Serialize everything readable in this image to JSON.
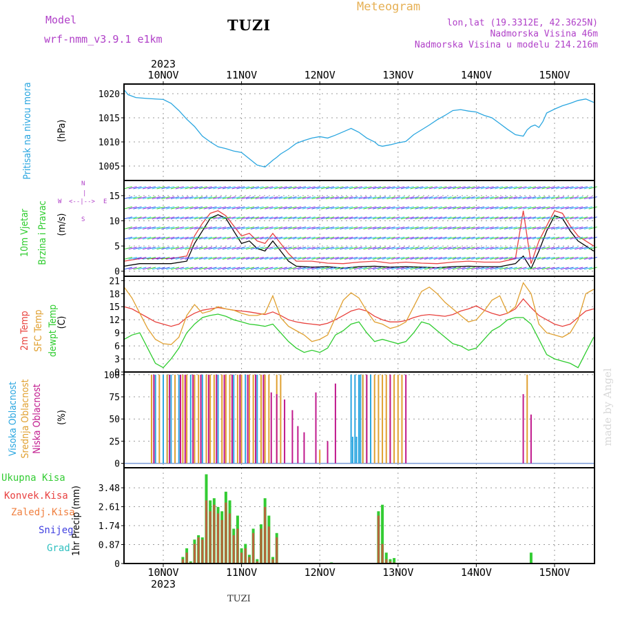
{
  "header": {
    "model_label": "Model",
    "model_name": "wrf-nmm_v3.9.1  e1km",
    "station": "TUZI",
    "product": "Meteogram",
    "lonlat": "lon,lat (19.3312E, 42.3625N)",
    "elevation": "Nadmorska Visina 46m",
    "model_elevation": "Nadmorska Visina u modelu 214.216m"
  },
  "footer": {
    "station": "TUZI",
    "credit": "made by Angel"
  },
  "colors": {
    "pressure": "#2aa6e0",
    "temp2m": "#e8413c",
    "sfc_temp": "#e0a030",
    "dewpoint": "#2ecc2e",
    "wind_speed": "#000000",
    "wind_gust": "#e84040",
    "cloud_high": "#2aa6e0",
    "cloud_mid": "#e0a030",
    "cloud_low": "#c0188c",
    "precip_total": "#33cc33",
    "precip_conv": "#e84040",
    "precip_frz": "#f08040",
    "snow": "#4040e0",
    "hail": "#30c0c0",
    "grid": "#999999",
    "labels": "#000000"
  },
  "time_axis": {
    "year": "2023",
    "days": [
      "10NOV",
      "11NOV",
      "12NOV",
      "13NOV",
      "14NOV",
      "15NOV"
    ]
  },
  "chart_data": [
    {
      "type": "line",
      "panel": "pressure",
      "ylabel_lines": [
        "Pritisak na nivou mora"
      ],
      "unit": "(hPa)",
      "ylim": [
        1002,
        1022
      ],
      "yticks": [
        "1005",
        "1010",
        "1015",
        "1020"
      ],
      "ytick_values": [
        1005,
        1010,
        1015,
        1020
      ],
      "xlim": [
        -0.5,
        5.5
      ],
      "x": [
        -0.5,
        -0.45,
        -0.35,
        -0.2,
        0,
        0.1,
        0.2,
        0.3,
        0.4,
        0.5,
        0.6,
        0.7,
        0.8,
        0.9,
        1.0,
        1.1,
        1.2,
        1.3,
        1.35,
        1.4,
        1.45,
        1.5,
        1.6,
        1.7,
        1.8,
        1.9,
        2.0,
        2.1,
        2.2,
        2.3,
        2.4,
        2.5,
        2.6,
        2.7,
        2.75,
        2.8,
        2.9,
        3.0,
        3.1,
        3.2,
        3.3,
        3.4,
        3.5,
        3.6,
        3.7,
        3.8,
        3.9,
        4.0,
        4.1,
        4.2,
        4.3,
        4.4,
        4.5,
        4.6,
        4.65,
        4.7,
        4.75,
        4.8,
        4.85,
        4.9,
        5.0,
        5.1,
        5.2,
        5.3,
        5.4,
        5.5
      ],
      "series": [
        {
          "values": [
            1020.8,
            1019.8,
            1019.2,
            1019.0,
            1018.8,
            1018.0,
            1016.5,
            1014.7,
            1013.2,
            1011.2,
            1010.0,
            1009.0,
            1008.6,
            1008.1,
            1007.8,
            1006.5,
            1005.2,
            1004.8,
            1005.5,
            1006.2,
            1006.8,
            1007.5,
            1008.5,
            1009.7,
            1010.3,
            1010.8,
            1011.1,
            1010.8,
            1011.4,
            1012.1,
            1012.8,
            1012.0,
            1010.8,
            1010.0,
            1009.3,
            1009.1,
            1009.4,
            1009.8,
            1010.1,
            1011.5,
            1012.5,
            1013.5,
            1014.6,
            1015.5,
            1016.5,
            1016.7,
            1016.4,
            1016.2,
            1015.5,
            1015.0,
            1013.8,
            1012.6,
            1011.5,
            1011.2,
            1012.5,
            1013.2,
            1013.5,
            1013.0,
            1014.2,
            1016.0,
            1016.8,
            1017.5,
            1018.0,
            1018.6,
            1018.9,
            1018.2
          ]
        }
      ]
    },
    {
      "type": "line",
      "panel": "wind",
      "ylabel_lines": [
        "10m Vjetar",
        "Brzina i Pravac"
      ],
      "unit": "(m/s)",
      "compass_labels": [
        "W",
        "<--|-->",
        "E",
        "N",
        "|",
        "S"
      ],
      "ylim": [
        -1,
        18
      ],
      "yticks": [
        "0",
        "5",
        "10",
        "15"
      ],
      "ytick_values": [
        0,
        5,
        10,
        15
      ],
      "xlim": [
        -0.5,
        5.5
      ],
      "x": [
        -0.5,
        -0.3,
        -0.1,
        0.1,
        0.3,
        0.4,
        0.5,
        0.6,
        0.7,
        0.8,
        0.9,
        1.0,
        1.1,
        1.2,
        1.3,
        1.4,
        1.5,
        1.6,
        1.7,
        1.9,
        2.1,
        2.3,
        2.5,
        2.7,
        2.9,
        3.1,
        3.3,
        3.5,
        3.7,
        3.9,
        4.1,
        4.3,
        4.5,
        4.6,
        4.7,
        4.8,
        4.9,
        5.0,
        5.1,
        5.2,
        5.3,
        5.4,
        5.5
      ],
      "series": [
        {
          "name": "speed",
          "values": [
            1.0,
            1.5,
            1.5,
            1.5,
            2.0,
            5.5,
            8.0,
            10.5,
            11.2,
            10.5,
            8.0,
            5.5,
            6.0,
            4.5,
            4.0,
            6.0,
            4.0,
            2.0,
            1.0,
            0.8,
            0.9,
            0.6,
            0.9,
            1.0,
            0.8,
            0.9,
            0.8,
            0.7,
            0.9,
            1.0,
            0.9,
            0.9,
            1.5,
            3.0,
            0.5,
            4.0,
            8.0,
            11.0,
            10.5,
            8.0,
            6.0,
            5.0,
            4.0
          ]
        },
        {
          "name": "gust",
          "values": [
            2.0,
            2.5,
            2.5,
            2.5,
            3.0,
            7.0,
            9.5,
            11.5,
            12.0,
            11.0,
            9.0,
            7.0,
            7.5,
            6.0,
            5.5,
            7.5,
            5.5,
            3.5,
            2.0,
            2.0,
            1.6,
            1.5,
            1.8,
            2.0,
            1.6,
            1.8,
            1.6,
            1.5,
            1.8,
            2.0,
            1.8,
            1.8,
            2.5,
            12.0,
            1.5,
            6.0,
            9.0,
            12.0,
            11.5,
            9.0,
            7.0,
            6.0,
            5.0
          ]
        }
      ]
    },
    {
      "type": "line",
      "panel": "temperature",
      "ylabel_lines": [
        "2m Temp",
        "SFC Temp",
        "dewpt Temp"
      ],
      "unit": "(C)",
      "ylim": [
        0,
        22
      ],
      "yticks": [
        "0",
        "3",
        "6",
        "9",
        "12",
        "15",
        "18",
        "21"
      ],
      "ytick_values": [
        0,
        3,
        6,
        9,
        12,
        15,
        18,
        21
      ],
      "xlim": [
        -0.5,
        5.5
      ],
      "x": [
        -0.5,
        -0.4,
        -0.3,
        -0.2,
        -0.1,
        0,
        0.1,
        0.2,
        0.3,
        0.4,
        0.5,
        0.6,
        0.7,
        0.8,
        0.9,
        1.0,
        1.1,
        1.2,
        1.3,
        1.4,
        1.5,
        1.6,
        1.7,
        1.8,
        1.9,
        2.0,
        2.1,
        2.2,
        2.3,
        2.4,
        2.5,
        2.6,
        2.7,
        2.8,
        2.9,
        3.0,
        3.1,
        3.2,
        3.3,
        3.4,
        3.5,
        3.6,
        3.7,
        3.8,
        3.9,
        4.0,
        4.1,
        4.2,
        4.3,
        4.4,
        4.5,
        4.6,
        4.7,
        4.8,
        4.9,
        5.0,
        5.1,
        5.2,
        5.3,
        5.4,
        5.5
      ],
      "series": [
        {
          "name": "2m",
          "values": [
            15.0,
            14.5,
            13.5,
            12.5,
            11.5,
            11.0,
            10.5,
            11.0,
            12.5,
            13.5,
            14.2,
            14.5,
            14.8,
            14.5,
            14.2,
            14.0,
            13.8,
            13.5,
            13.2,
            13.8,
            13.0,
            12.0,
            11.5,
            11.2,
            11.0,
            10.8,
            11.2,
            12.0,
            13.0,
            14.0,
            14.5,
            14.0,
            12.8,
            12.0,
            11.5,
            11.5,
            11.8,
            12.5,
            13.0,
            13.2,
            13.0,
            12.8,
            13.2,
            14.0,
            14.5,
            15.2,
            14.2,
            13.5,
            13.0,
            13.5,
            14.5,
            16.8,
            14.8,
            13.0,
            12.0,
            11.0,
            10.5,
            11.0,
            12.5,
            14.0,
            14.5
          ]
        },
        {
          "name": "sfc",
          "values": [
            19.5,
            17.0,
            13.5,
            10.0,
            7.5,
            6.5,
            6.3,
            8.0,
            13.0,
            15.5,
            13.5,
            14.0,
            15.0,
            14.5,
            14.2,
            13.5,
            13.0,
            13.0,
            13.5,
            17.5,
            12.5,
            10.5,
            9.5,
            8.5,
            7.0,
            7.5,
            8.5,
            12.5,
            16.5,
            18.2,
            17.0,
            14.0,
            11.5,
            11.0,
            10.0,
            10.5,
            11.5,
            15.0,
            18.5,
            19.5,
            18.0,
            16.0,
            14.5,
            13.0,
            11.5,
            12.0,
            14.0,
            16.5,
            17.5,
            13.5,
            15.0,
            20.5,
            18.0,
            11.0,
            9.0,
            8.5,
            8.0,
            9.0,
            12.0,
            18.0,
            19.0
          ]
        },
        {
          "name": "dewpt",
          "values": [
            7.5,
            8.5,
            9.0,
            5.5,
            2.0,
            1.0,
            3.0,
            5.5,
            9.0,
            11.0,
            12.5,
            13.0,
            13.3,
            12.8,
            12.0,
            11.5,
            11.0,
            10.8,
            10.5,
            11.0,
            9.0,
            7.0,
            5.5,
            4.5,
            5.0,
            4.5,
            5.5,
            8.5,
            9.5,
            11.0,
            11.5,
            9.0,
            7.0,
            7.5,
            7.0,
            6.5,
            7.0,
            9.0,
            11.5,
            11.0,
            9.5,
            8.0,
            6.5,
            6.0,
            5.0,
            5.5,
            7.5,
            9.5,
            10.5,
            12.0,
            12.5,
            12.5,
            11.0,
            7.5,
            4.0,
            3.0,
            2.5,
            2.0,
            1.0,
            4.5,
            8.0
          ]
        }
      ]
    },
    {
      "type": "bar",
      "panel": "cloud",
      "ylabel_lines": [
        "Visoka Oblacnost",
        "Srednja Oblacnost",
        "Niska Oblacnost"
      ],
      "unit": "(%)",
      "ylim": [
        -5,
        103
      ],
      "yticks": [
        "0",
        "25",
        "50",
        "75",
        "100"
      ],
      "ytick_values": [
        0,
        25,
        50,
        75,
        100
      ],
      "xlim": [
        -0.5,
        5.5
      ],
      "series": [
        {
          "name": "high",
          "x": [
            -0.1,
            0.0,
            0.05,
            0.1,
            0.2,
            0.35,
            0.5,
            0.7,
            0.9,
            1.05,
            1.2,
            2.4,
            2.42,
            2.45,
            2.47,
            2.5,
            2.52,
            2.55,
            2.6,
            2.65
          ],
          "values": [
            100,
            100,
            100,
            100,
            100,
            100,
            100,
            100,
            100,
            100,
            100,
            100,
            30,
            100,
            30,
            100,
            100,
            100,
            100,
            100
          ]
        },
        {
          "name": "mid",
          "x": [
            -0.15,
            -0.05,
            0.05,
            0.15,
            0.25,
            0.3,
            0.4,
            0.45,
            0.55,
            0.6,
            0.65,
            0.75,
            0.8,
            0.85,
            0.95,
            1.0,
            1.1,
            1.15,
            1.25,
            1.3,
            1.35,
            1.45,
            1.5,
            2.0,
            2.55,
            2.6,
            2.7,
            2.75,
            2.8,
            2.85,
            2.9,
            2.95,
            3.0,
            3.05,
            4.65
          ],
          "values": [
            100,
            100,
            100,
            100,
            100,
            100,
            100,
            100,
            100,
            100,
            100,
            100,
            100,
            100,
            100,
            100,
            100,
            100,
            100,
            100,
            100,
            100,
            100,
            15,
            100,
            100,
            100,
            100,
            100,
            100,
            100,
            100,
            100,
            100,
            100
          ]
        },
        {
          "name": "low",
          "x": [
            -0.12,
            0.08,
            0.22,
            0.28,
            0.38,
            0.48,
            0.58,
            0.68,
            0.78,
            0.88,
            0.98,
            1.08,
            1.18,
            1.28,
            1.38,
            1.45,
            1.55,
            1.65,
            1.72,
            1.8,
            1.95,
            2.1,
            2.2,
            2.6,
            2.9,
            3.1,
            4.6,
            4.7
          ],
          "values": [
            100,
            100,
            100,
            100,
            100,
            100,
            100,
            100,
            100,
            100,
            100,
            100,
            100,
            100,
            80,
            78,
            72,
            60,
            42,
            35,
            80,
            25,
            90,
            100,
            100,
            100,
            78,
            55
          ]
        }
      ]
    },
    {
      "type": "bar",
      "panel": "precipitation",
      "ylabel_lines": [
        "1hr Precip (mm)"
      ],
      "legend": [
        "Ukupna Kisa",
        "Konvek.Kisa",
        "Zaledj.Kisa",
        "Snijeg",
        "Grad"
      ],
      "ylim": [
        0,
        4.4
      ],
      "yticks": [
        "0",
        "0.87",
        "1.74",
        "2.61",
        "3.48"
      ],
      "ytick_values": [
        0,
        0.87,
        1.74,
        2.61,
        3.48
      ],
      "xlim": [
        -0.5,
        5.5
      ],
      "x": [
        0.25,
        0.3,
        0.35,
        0.4,
        0.45,
        0.5,
        0.55,
        0.6,
        0.65,
        0.7,
        0.75,
        0.8,
        0.85,
        0.9,
        0.95,
        1.0,
        1.05,
        1.1,
        1.15,
        1.2,
        1.25,
        1.3,
        1.35,
        1.4,
        1.45,
        2.15,
        2.75,
        2.8,
        2.85,
        2.9,
        2.95,
        4.7
      ],
      "series": [
        {
          "name": "total",
          "values": [
            0.3,
            0.7,
            0.1,
            1.1,
            1.3,
            1.2,
            4.1,
            2.9,
            3.0,
            2.6,
            2.4,
            3.3,
            2.9,
            1.6,
            2.2,
            0.7,
            0.9,
            0.4,
            1.6,
            0.2,
            1.8,
            3.0,
            2.2,
            0.3,
            1.4,
            0.05,
            2.4,
            2.7,
            0.5,
            0.2,
            0.25,
            0.5
          ]
        },
        {
          "name": "conv",
          "values": [
            0.2,
            0.5,
            0.05,
            0.9,
            1.2,
            1.1,
            2.9,
            2.4,
            2.7,
            2.3,
            2.0,
            2.8,
            2.3,
            1.3,
            1.6,
            0.5,
            0.7,
            0.3,
            1.4,
            0.1,
            1.6,
            2.6,
            1.7,
            0.2,
            1.2,
            0.03,
            2.2,
            0.9,
            0.2,
            0.1,
            0.05,
            0.0
          ]
        }
      ]
    }
  ]
}
